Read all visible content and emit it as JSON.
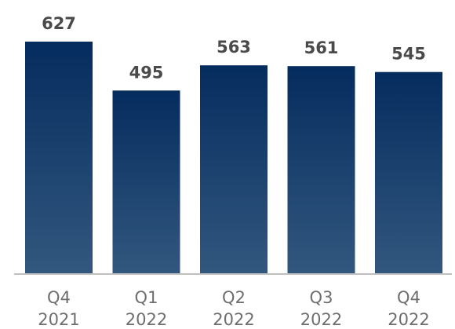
{
  "chart_data": {
    "type": "bar",
    "categories": [
      [
        "Q4",
        "2021"
      ],
      [
        "Q1",
        "2022"
      ],
      [
        "Q2",
        "2022"
      ],
      [
        "Q3",
        "2022"
      ],
      [
        "Q4",
        "2022"
      ]
    ],
    "values": [
      627,
      495,
      563,
      561,
      545
    ],
    "data_labels": [
      "627",
      "495",
      "563",
      "561",
      "545"
    ],
    "title": "",
    "xlabel": "",
    "ylabel": "",
    "ylim": [
      0,
      627
    ],
    "grid": false,
    "legend": "none",
    "colors": {
      "bar_top": "#052c5e",
      "bar_bottom": "#32587f",
      "baseline": "#c0c0c0",
      "value_text": "#4a4a4a",
      "tick_text": "#6e6e6e"
    }
  }
}
